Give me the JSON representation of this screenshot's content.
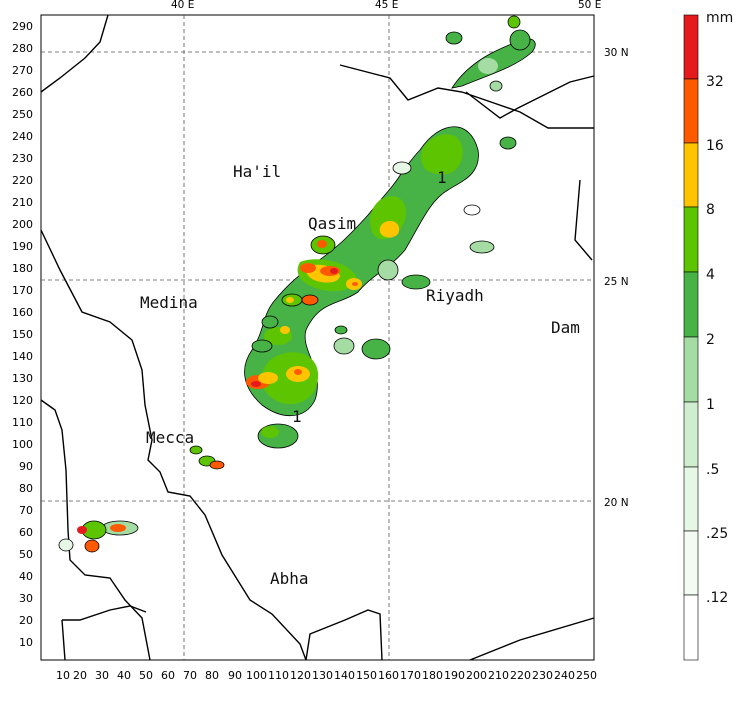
{
  "map": {
    "x_ticks": [
      "10",
      "20",
      "30",
      "40",
      "50",
      "60",
      "70",
      "80",
      "90",
      "100",
      "110",
      "120",
      "130",
      "140",
      "150",
      "160",
      "170",
      "180",
      "190",
      "200",
      "210",
      "220",
      "230",
      "240",
      "250"
    ],
    "y_ticks": [
      "10",
      "20",
      "30",
      "40",
      "50",
      "60",
      "70",
      "80",
      "90",
      "100",
      "110",
      "120",
      "130",
      "140",
      "150",
      "160",
      "170",
      "180",
      "190",
      "200",
      "210",
      "220",
      "230",
      "240",
      "250",
      "260",
      "270",
      "280",
      "290"
    ],
    "lon_labels": [
      "40 E",
      "45 E",
      "50 E"
    ],
    "lat_labels": [
      "30 N",
      "25 N",
      "20 N"
    ],
    "cities": {
      "hail": "Ha'il",
      "qasim": "Qasim",
      "medina": "Medina",
      "riyadh": "Riyadh",
      "dam": "Dam",
      "mecca": "Mecca",
      "abha": "Abha"
    },
    "contour_marks": [
      "1",
      "1"
    ]
  },
  "legend": {
    "unit": "mm",
    "levels": [
      "32",
      "16",
      "8",
      "4",
      "2",
      "1",
      ".5",
      ".25",
      ".12"
    ],
    "colors": [
      "#e41a1c",
      "#ff5a00",
      "#ffc400",
      "#5cc400",
      "#47b347",
      "#a4dca4",
      "#cfeecf",
      "#e6f7e6",
      "#f3fbf3",
      "#ffffff"
    ]
  }
}
